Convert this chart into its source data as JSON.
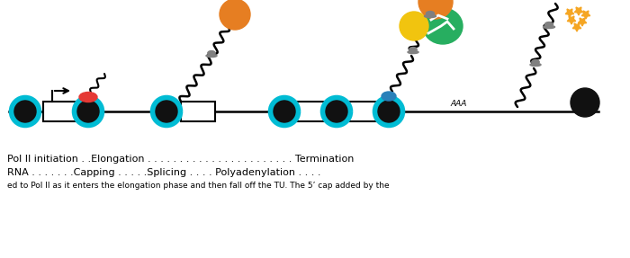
{
  "bg_color": "#ffffff",
  "line1": "Pol II initiation . .Elongation . . . . . . . . . . . . . . . . . . . . . . . Termination",
  "line2": "RNA . . . . . . .Capping . . . . .Splicing . . . . Polyadenylation . . . .",
  "line3": "ed to Pol II as it enters the elongation phase and then fall off the TU. The 5’ cap added by the",
  "black_color": "#111111",
  "cyan_color": "#00bcd4",
  "red_color": "#e53935",
  "orange_color": "#e67e22",
  "yellow_color": "#f1c40f",
  "green_color": "#27ae60",
  "blue_color": "#2980b9",
  "gray_color": "#808080",
  "gold_color": "#f5a623"
}
